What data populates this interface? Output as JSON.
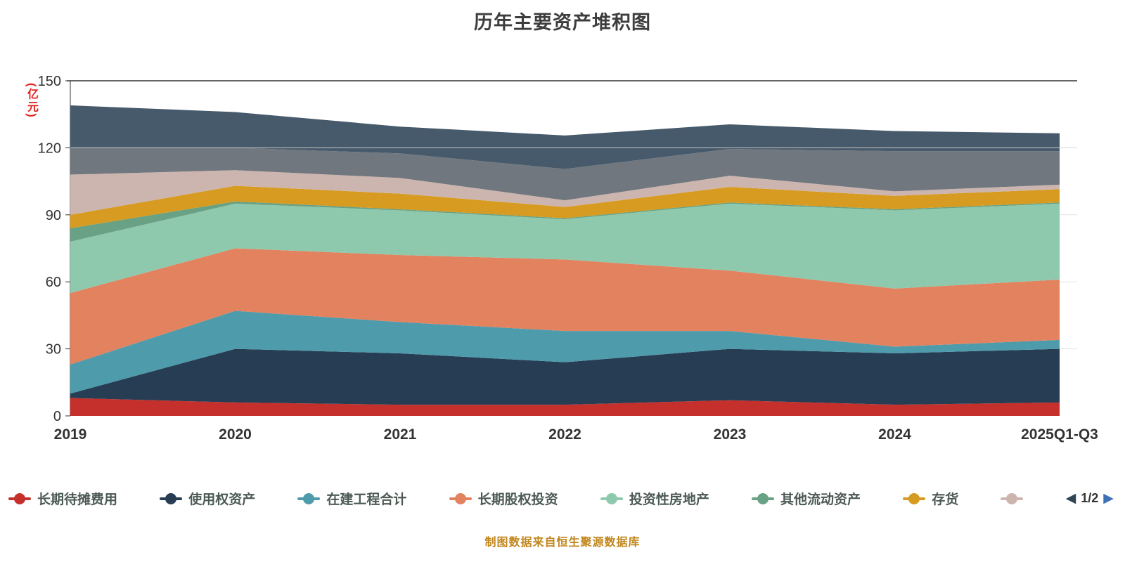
{
  "title": "历年主要资产堆积图",
  "y_axis_unit": "(亿元)",
  "footer": "制图数据来自恒生聚源数据库",
  "legend": {
    "text_color": "#4c5a54",
    "items": [
      {
        "label": "长期待摊费用",
        "color": "#c6302c",
        "partial": false
      },
      {
        "label": "使用权资产",
        "color": "#263d54",
        "partial": false
      },
      {
        "label": "在建工程合计",
        "color": "#4e9bab",
        "partial": false
      },
      {
        "label": "长期股权投资",
        "color": "#e2825f",
        "partial": false
      },
      {
        "label": "投资性房地产",
        "color": "#8fc9ad",
        "partial": false
      },
      {
        "label": "其他流动资产",
        "color": "#68a183",
        "partial": false
      },
      {
        "label": "存货",
        "color": "#d69b20",
        "partial": false
      },
      {
        "label": "",
        "color": "#cdb5af",
        "partial": true
      }
    ],
    "pagination": {
      "current": "1/2",
      "prev_color": "#2f4554",
      "next_color": "#3e6fb7"
    }
  },
  "chart_data": {
    "type": "area",
    "stacked": true,
    "title": "历年主要资产堆积图",
    "xlabel": "",
    "ylabel": "(亿元)",
    "categories": [
      "2019",
      "2020",
      "2021",
      "2022",
      "2023",
      "2024",
      "2025Q1-Q3"
    ],
    "ylim": [
      0,
      150
    ],
    "yticks": [
      0,
      30,
      60,
      90,
      120,
      150
    ],
    "grid": true,
    "legend_position": "bottom",
    "series": [
      {
        "name": "长期待摊费用",
        "color": "#c6302c",
        "values": [
          8,
          6,
          5,
          5,
          7,
          5,
          6
        ]
      },
      {
        "name": "使用权资产",
        "color": "#263d54",
        "values": [
          2,
          24,
          23,
          19,
          23,
          23,
          24
        ]
      },
      {
        "name": "在建工程合计",
        "color": "#4e9bab",
        "values": [
          13,
          17,
          14,
          14,
          8,
          3,
          4
        ]
      },
      {
        "name": "长期股权投资",
        "color": "#e2825f",
        "values": [
          32,
          28,
          30,
          32,
          27,
          26,
          27
        ]
      },
      {
        "name": "投资性房地产",
        "color": "#8fc9ad",
        "values": [
          23,
          20,
          20,
          18,
          30,
          35,
          34
        ]
      },
      {
        "name": "其他流动资产",
        "color": "#68a183",
        "values": [
          6,
          1,
          0.5,
          0.5,
          0.5,
          0.5,
          0.5
        ]
      },
      {
        "name": "存货",
        "color": "#d69b20",
        "values": [
          6,
          7,
          7,
          5,
          7,
          6,
          6
        ]
      },
      {
        "name": "",
        "color": "#cdb5af",
        "values": [
          18,
          7,
          7,
          3,
          5,
          2,
          2
        ]
      },
      {
        "name": "",
        "color": "#70777e",
        "values": [
          12,
          10,
          11,
          14,
          12,
          18,
          15
        ]
      },
      {
        "name": "",
        "color": "#475a6b",
        "values": [
          19,
          16,
          12,
          15,
          11,
          9,
          8
        ]
      }
    ]
  }
}
